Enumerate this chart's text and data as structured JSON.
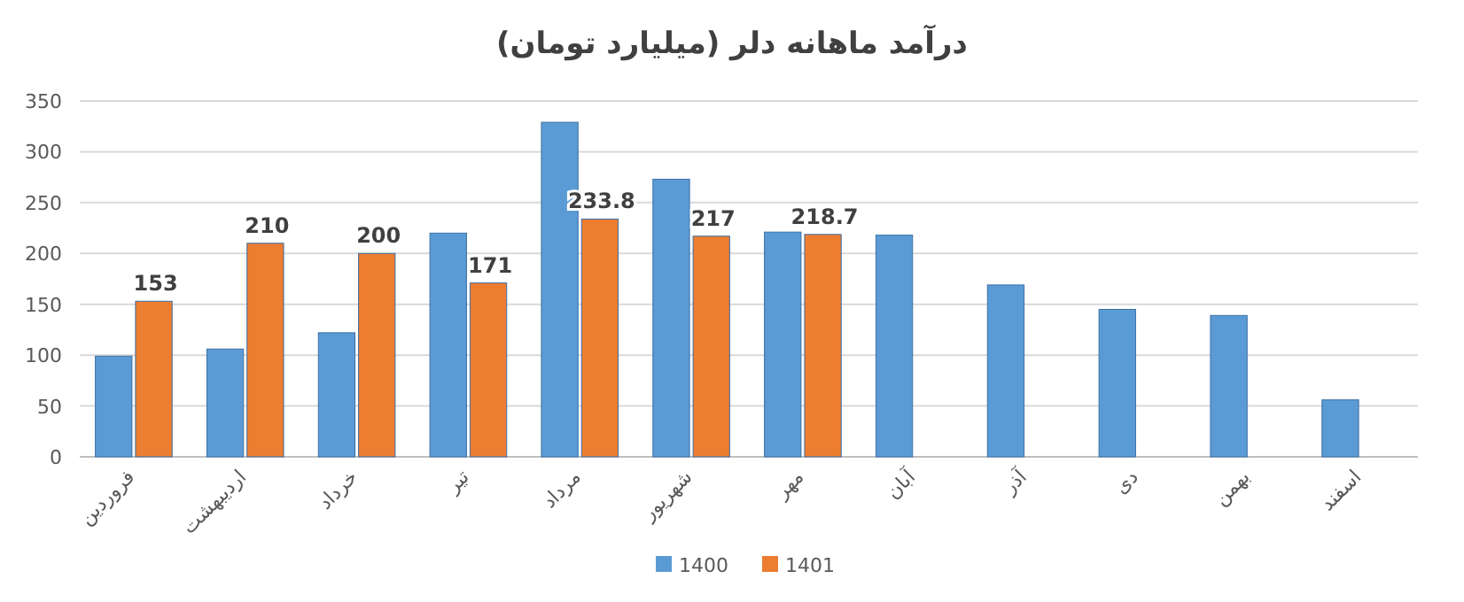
{
  "chart_data": {
    "type": "bar",
    "title": "درآمد ماهانه دلر (میلیارد تومان)",
    "categories": [
      "فروردین",
      "اردیبهشت",
      "خرداد",
      "تیر",
      "مرداد",
      "شهریور",
      "مهر",
      "آبان",
      "آذر",
      "دی",
      "بهمن",
      "اسفند"
    ],
    "series": [
      {
        "name": "1400",
        "color": "#5b9bd5",
        "values": [
          99,
          106,
          122,
          220,
          329,
          273,
          221,
          218,
          169,
          145,
          139,
          56
        ]
      },
      {
        "name": "1401",
        "color": "#ed7d31",
        "values": [
          153,
          210,
          200,
          171,
          233.8,
          217,
          218.7,
          null,
          null,
          null,
          null,
          null
        ],
        "value_labels": [
          "153",
          "210",
          "200",
          "171",
          "233.8",
          "217",
          "218.7",
          null,
          null,
          null,
          null,
          null
        ]
      }
    ],
    "ylim": [
      0,
      350
    ],
    "yticks": [
      0,
      50,
      100,
      150,
      200,
      250,
      300,
      350
    ],
    "grid": "y",
    "legend": "bottom"
  }
}
